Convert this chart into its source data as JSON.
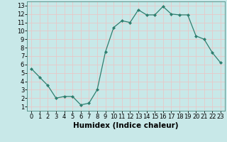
{
  "title": "",
  "xlabel": "Humidex (Indice chaleur)",
  "x": [
    0,
    1,
    2,
    3,
    4,
    5,
    6,
    7,
    8,
    9,
    10,
    11,
    12,
    13,
    14,
    15,
    16,
    17,
    18,
    19,
    20,
    21,
    22,
    23
  ],
  "y": [
    5.5,
    4.5,
    3.5,
    2.0,
    2.2,
    2.2,
    1.2,
    1.4,
    3.0,
    7.5,
    10.4,
    11.2,
    11.0,
    12.5,
    11.9,
    11.9,
    12.9,
    12.0,
    11.9,
    11.9,
    9.4,
    9.0,
    7.4,
    6.2
  ],
  "line_color": "#2e7f6f",
  "bg_color": "#c8e8e8",
  "grid_color": "#e8c8c8",
  "xlim": [
    -0.5,
    23.5
  ],
  "ylim": [
    0.5,
    13.5
  ],
  "xticks": [
    0,
    1,
    2,
    3,
    4,
    5,
    6,
    7,
    8,
    9,
    10,
    11,
    12,
    13,
    14,
    15,
    16,
    17,
    18,
    19,
    20,
    21,
    22,
    23
  ],
  "yticks": [
    1,
    2,
    3,
    4,
    5,
    6,
    7,
    8,
    9,
    10,
    11,
    12,
    13
  ],
  "tick_fontsize": 6.0,
  "label_fontsize": 7.5
}
